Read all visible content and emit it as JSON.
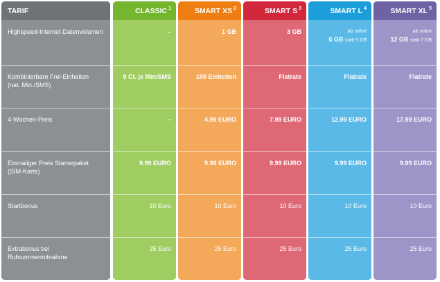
{
  "header_label": "TARIF",
  "rows": [
    {
      "label": "Highspeed-Internet-Datenvolumen",
      "label2": ""
    },
    {
      "label": "Kombinierbare Frei-Einheiten",
      "label2": "(nat. Min./SMS)"
    },
    {
      "label": "4-Wochen-Preis",
      "label2": ""
    },
    {
      "label": "Einmaliger Preis Starterpaket",
      "label2": "(SIM-Karte)"
    },
    {
      "label": "Startbonus",
      "label2": ""
    },
    {
      "label": "Extrabonus bei Rufnummermitnahme",
      "label2": ""
    }
  ],
  "colors": {
    "label_header": "#6f7376",
    "label_body": "#8d9093",
    "classic_header": "#74b62e",
    "classic_body": "#9fcd62",
    "xs_header": "#ee7d12",
    "xs_body": "#f3a85a",
    "s_header": "#d3273b",
    "s_body": "#de6876",
    "l_header": "#1c9edb",
    "l_body": "#5ab9e6",
    "xl_header": "#6c62a4",
    "xl_body": "#9c95c8"
  },
  "plans": [
    {
      "key": "classic",
      "name": "CLASSIC",
      "sup": "1",
      "data_pre": "",
      "data_main": "–",
      "data_post": "",
      "units": "9 Ct. je Min/SMS",
      "price": "–",
      "starter": "9.99 EURO",
      "startbonus": "10 Euro",
      "extrabonus": "25 Euro"
    },
    {
      "key": "xs",
      "name": "SMART XS",
      "sup": "2",
      "data_pre": "",
      "data_main": "1 GB",
      "data_post": "",
      "units": "100 Einheiten",
      "price": "4.99 EURO",
      "starter": "9.99 EURO",
      "startbonus": "10 Euro",
      "extrabonus": "25 Euro"
    },
    {
      "key": "s",
      "name": "SMART S",
      "sup": "3",
      "data_pre": "",
      "data_main": "3 GB",
      "data_post": "",
      "units": "Flatrate",
      "price": "7.99 EURO",
      "starter": "9.99 EURO",
      "startbonus": "10 Euro",
      "extrabonus": "25 Euro"
    },
    {
      "key": "l",
      "name": "SMART L",
      "sup": "4",
      "data_pre": "ab sofort",
      "data_main": "6 GB",
      "data_post": "statt 5 GB",
      "units": "Flatrate",
      "price": "12.99 EURO",
      "starter": "9.99 EURO",
      "startbonus": "10 Euro",
      "extrabonus": "25 Euro"
    },
    {
      "key": "xl",
      "name": "SMART XL",
      "sup": "5",
      "data_pre": "ab sofort",
      "data_main": "12 GB",
      "data_post": "statt 7 GB",
      "units": "Flatrate",
      "price": "17.99 EURO",
      "starter": "9.99 EURO",
      "startbonus": "10 Euro",
      "extrabonus": "25 Euro"
    }
  ]
}
